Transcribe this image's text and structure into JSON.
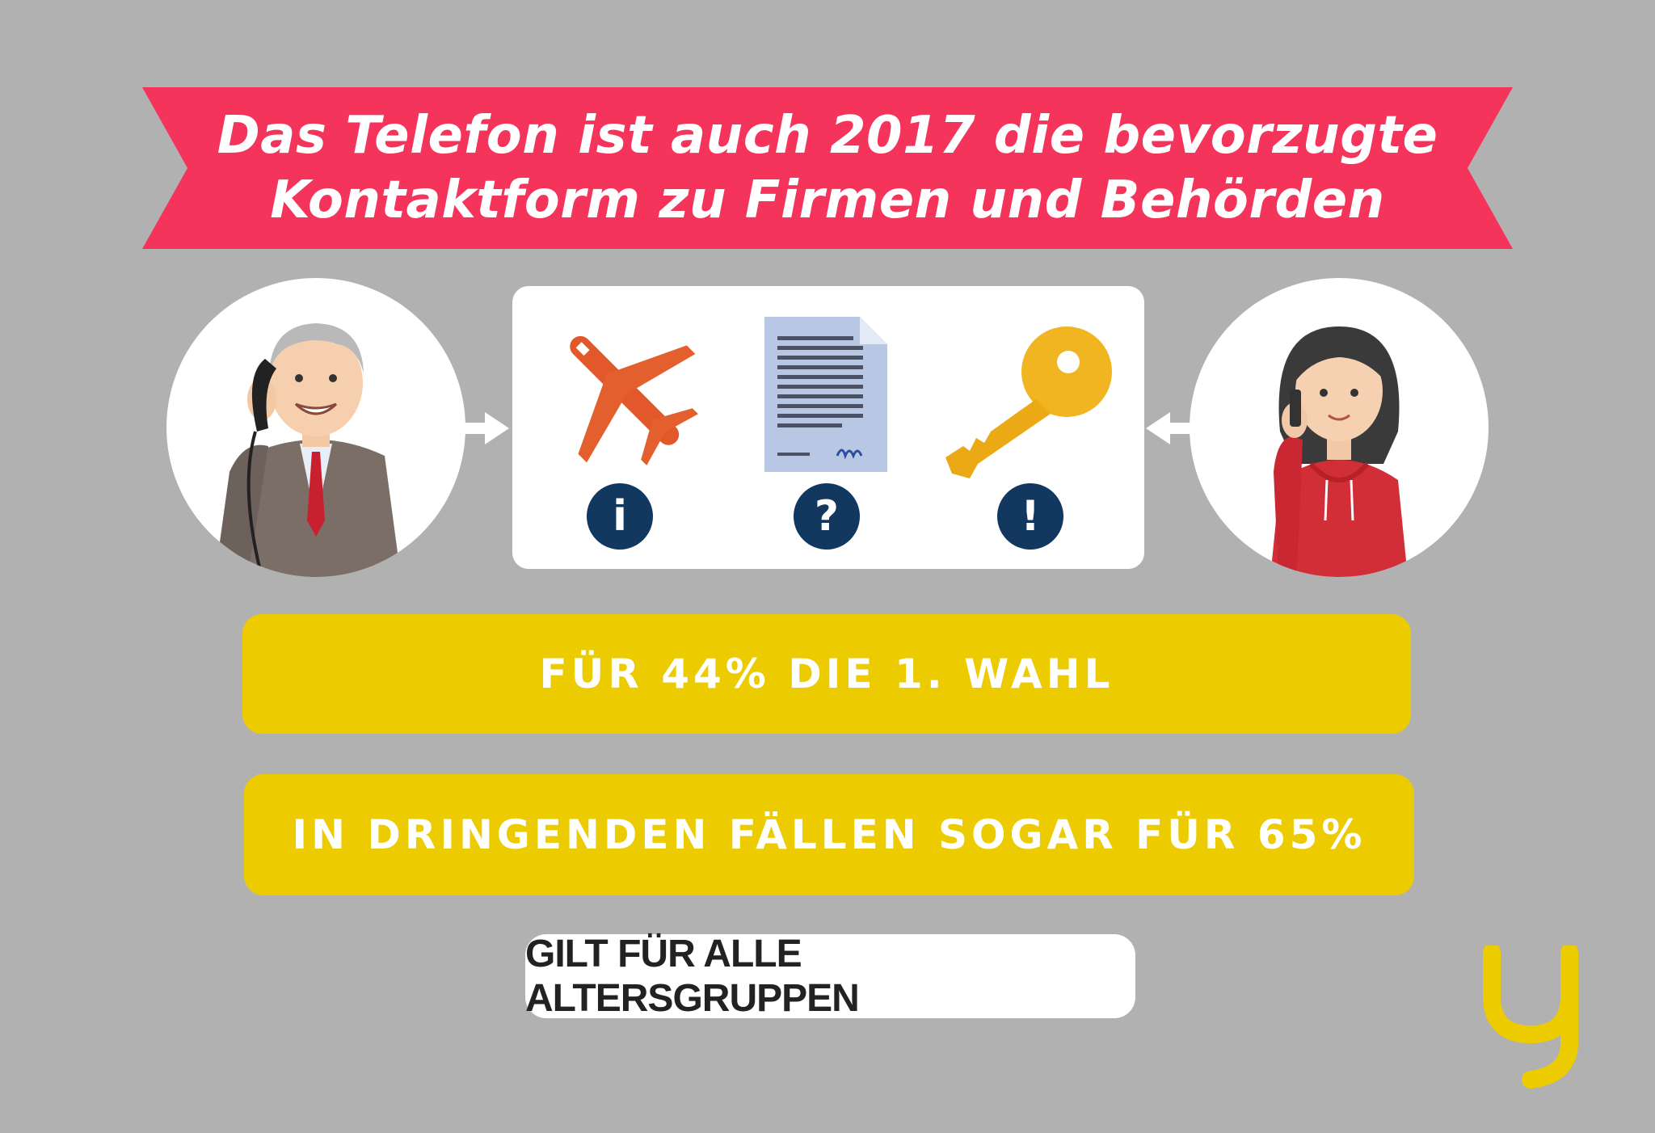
{
  "headline": {
    "line1": "Das Telefon ist auch 2017 die bevorzugte",
    "line2": "Kontaktform zu Firmen und Behörden"
  },
  "pictograms": {
    "items": [
      {
        "icon": "airplane-icon",
        "badge_icon": "info-icon",
        "badge_text": "i"
      },
      {
        "icon": "document-icon",
        "badge_icon": "question-icon",
        "badge_text": "?"
      },
      {
        "icon": "key-icon",
        "badge_icon": "exclamation-icon",
        "badge_text": "!"
      }
    ]
  },
  "stats": {
    "first": "FÜR 44% DIE 1. WAHL",
    "second": "IN DRINGENDEN FÄLLEN SOGAR FÜR 65%"
  },
  "footer_tag": "GILT FÜR ALLE ALTERSGRUPPEN",
  "colors": {
    "background": "#b1b1b1",
    "banner": "#f4345b",
    "highlight": "#eccb00",
    "badge": "#13385f"
  }
}
